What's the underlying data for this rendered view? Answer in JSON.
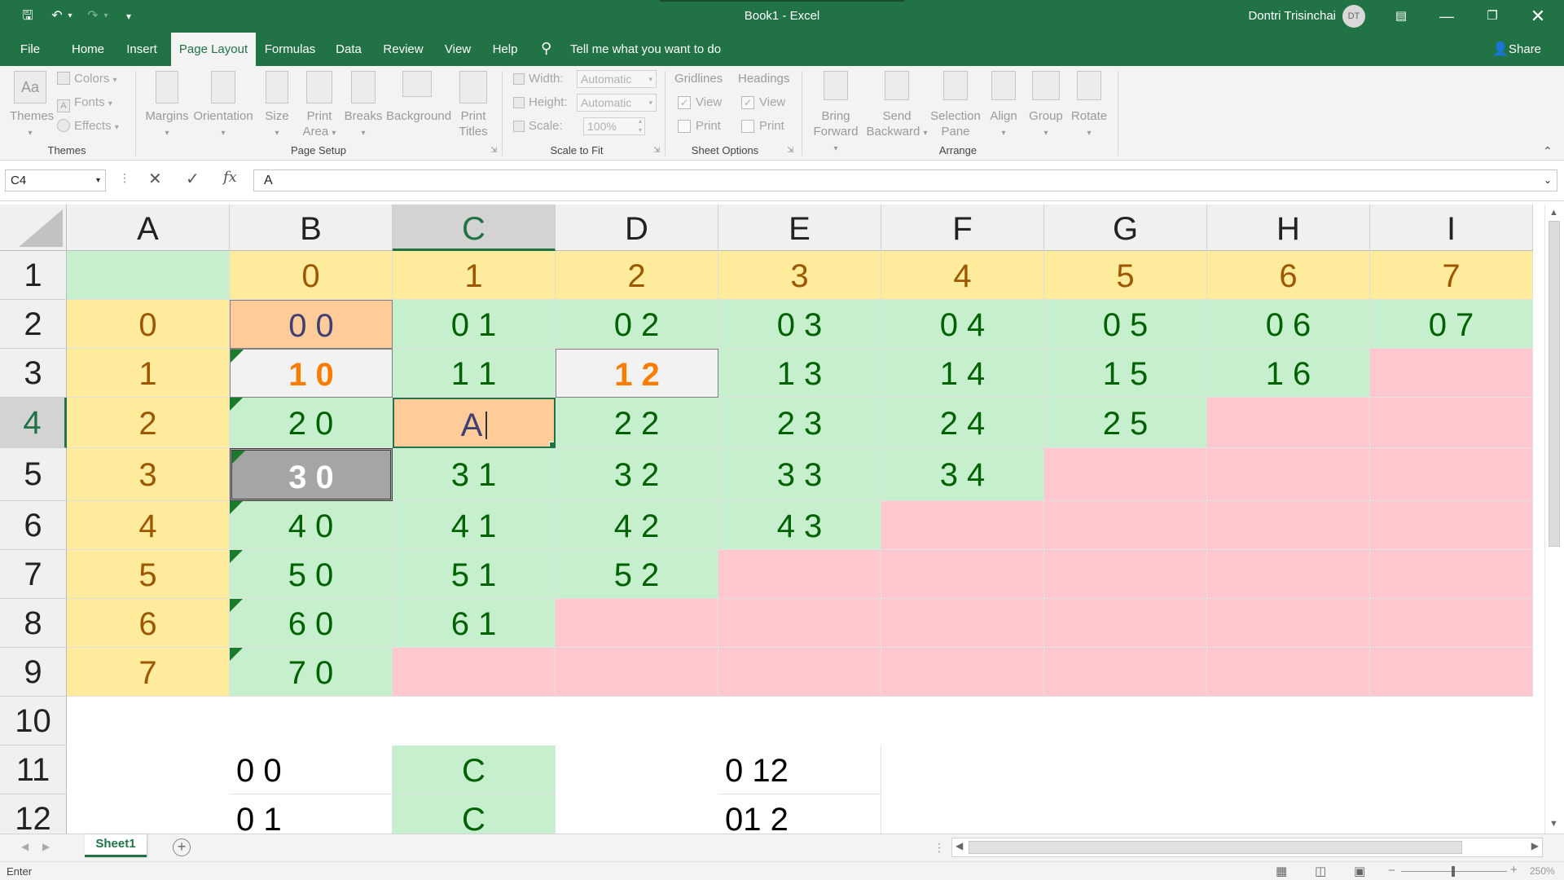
{
  "titlebar": {
    "title": "Book1  -  Excel",
    "user": "Dontri Trisinchai",
    "initials": "DT"
  },
  "tabs": [
    {
      "label": "File",
      "x": 20,
      "w": 34
    },
    {
      "label": "Home",
      "x": 80,
      "w": 56
    },
    {
      "label": "Insert",
      "x": 148,
      "w": 52
    },
    {
      "label": "Page Layout",
      "x": 210,
      "w": 104,
      "active": true
    },
    {
      "label": "Formulas",
      "x": 318,
      "w": 76
    },
    {
      "label": "Data",
      "x": 404,
      "w": 48
    },
    {
      "label": "Review",
      "x": 464,
      "w": 62
    },
    {
      "label": "View",
      "x": 538,
      "w": 48
    },
    {
      "label": "Help",
      "x": 596,
      "w": 48
    }
  ],
  "tellme": "Tell me what you want to do",
  "share": "Share",
  "ribbon": {
    "themes": {
      "themes": "Themes",
      "colors": "Colors",
      "fonts": "Fonts",
      "effects": "Effects",
      "group": "Themes"
    },
    "page_setup": {
      "margins": "Margins",
      "orientation": "Orientation",
      "size": "Size",
      "print_area_1": "Print",
      "print_area_2": "Area",
      "breaks": "Breaks",
      "background": "Background",
      "print_titles_1": "Print",
      "print_titles_2": "Titles",
      "group": "Page Setup"
    },
    "scale": {
      "width": "Width:",
      "height": "Height:",
      "scale": "Scale:",
      "width_val": "Automatic",
      "height_val": "Automatic",
      "scale_val": "100%",
      "group": "Scale to Fit"
    },
    "sheet_options": {
      "gridlines": "Gridlines",
      "headings": "Headings",
      "view": "View",
      "print": "Print",
      "group": "Sheet Options"
    },
    "arrange": {
      "bring_1": "Bring",
      "bring_2": "Forward",
      "send_1": "Send",
      "send_2": "Backward",
      "selection_1": "Selection",
      "selection_2": "Pane",
      "align": "Align",
      "group_btn": "Group",
      "rotate": "Rotate",
      "group": "Arrange"
    }
  },
  "formula_bar": {
    "name_box": "C4",
    "content": "A"
  },
  "columns": [
    {
      "label": "A",
      "x": 82,
      "w": 200
    },
    {
      "label": "B",
      "x": 282,
      "w": 200
    },
    {
      "label": "C",
      "x": 482,
      "w": 200,
      "selected": true
    },
    {
      "label": "D",
      "x": 682,
      "w": 200
    },
    {
      "label": "E",
      "x": 882,
      "w": 200
    },
    {
      "label": "F",
      "x": 1082,
      "w": 200
    },
    {
      "label": "G",
      "x": 1282,
      "w": 200
    },
    {
      "label": "H",
      "x": 1482,
      "w": 200
    },
    {
      "label": "I",
      "x": 1682,
      "w": 200
    }
  ],
  "rows": [
    {
      "label": "1",
      "y": 57,
      "h": 60
    },
    {
      "label": "2",
      "y": 117,
      "h": 60
    },
    {
      "label": "3",
      "y": 177,
      "h": 60
    },
    {
      "label": "4",
      "y": 237,
      "h": 62,
      "selected": true
    },
    {
      "label": "5",
      "y": 299,
      "h": 65
    },
    {
      "label": "6",
      "y": 364,
      "h": 60
    },
    {
      "label": "7",
      "y": 424,
      "h": 60
    },
    {
      "label": "8",
      "y": 484,
      "h": 60
    },
    {
      "label": "9",
      "y": 544,
      "h": 60
    },
    {
      "label": "10",
      "y": 604,
      "h": 60
    },
    {
      "label": "11",
      "y": 664,
      "h": 60
    },
    {
      "label": "12",
      "y": 724,
      "h": 60
    }
  ],
  "cells": [
    {
      "r": 0,
      "c": 0,
      "v": "",
      "bg": "#c6efce"
    },
    {
      "r": 0,
      "c": 1,
      "v": "0",
      "bg": "#ffeb9c",
      "fg": "#9c5700"
    },
    {
      "r": 0,
      "c": 2,
      "v": "1",
      "bg": "#ffeb9c",
      "fg": "#9c5700"
    },
    {
      "r": 0,
      "c": 3,
      "v": "2",
      "bg": "#ffeb9c",
      "fg": "#9c5700"
    },
    {
      "r": 0,
      "c": 4,
      "v": "3",
      "bg": "#ffeb9c",
      "fg": "#9c5700"
    },
    {
      "r": 0,
      "c": 5,
      "v": "4",
      "bg": "#ffeb9c",
      "fg": "#9c5700"
    },
    {
      "r": 0,
      "c": 6,
      "v": "5",
      "bg": "#ffeb9c",
      "fg": "#9c5700"
    },
    {
      "r": 0,
      "c": 7,
      "v": "6",
      "bg": "#ffeb9c",
      "fg": "#9c5700"
    },
    {
      "r": 0,
      "c": 8,
      "v": "7",
      "bg": "#ffeb9c",
      "fg": "#9c5700"
    },
    {
      "r": 1,
      "c": 0,
      "v": "0",
      "bg": "#ffeb9c",
      "fg": "#9c5700"
    },
    {
      "r": 1,
      "c": 1,
      "v": "0 0",
      "bg": "#ffcc99",
      "fg": "#3f3f76",
      "border": "#7f7f7f"
    },
    {
      "r": 1,
      "c": 2,
      "v": "0 1",
      "bg": "#c6efce",
      "fg": "#006100"
    },
    {
      "r": 1,
      "c": 3,
      "v": "0 2",
      "bg": "#c6efce",
      "fg": "#006100"
    },
    {
      "r": 1,
      "c": 4,
      "v": "0 3",
      "bg": "#c6efce",
      "fg": "#006100"
    },
    {
      "r": 1,
      "c": 5,
      "v": "0 4",
      "bg": "#c6efce",
      "fg": "#006100"
    },
    {
      "r": 1,
      "c": 6,
      "v": "0 5",
      "bg": "#c6efce",
      "fg": "#006100"
    },
    {
      "r": 1,
      "c": 7,
      "v": "0 6",
      "bg": "#c6efce",
      "fg": "#006100"
    },
    {
      "r": 1,
      "c": 8,
      "v": "0 7",
      "bg": "#c6efce",
      "fg": "#006100"
    },
    {
      "r": 2,
      "c": 0,
      "v": "1",
      "bg": "#ffeb9c",
      "fg": "#9c5700"
    },
    {
      "r": 2,
      "c": 1,
      "v": "1 0",
      "bg": "#f2f2f2",
      "fg": "#fa7d00",
      "bold": true,
      "border": "#7f7f7f",
      "err": true
    },
    {
      "r": 2,
      "c": 2,
      "v": "1 1",
      "bg": "#c6efce",
      "fg": "#006100"
    },
    {
      "r": 2,
      "c": 3,
      "v": "1 2",
      "bg": "#f2f2f2",
      "fg": "#fa7d00",
      "bold": true,
      "border": "#7f7f7f"
    },
    {
      "r": 2,
      "c": 4,
      "v": "1 3",
      "bg": "#c6efce",
      "fg": "#006100"
    },
    {
      "r": 2,
      "c": 5,
      "v": "1 4",
      "bg": "#c6efce",
      "fg": "#006100"
    },
    {
      "r": 2,
      "c": 6,
      "v": "1 5",
      "bg": "#c6efce",
      "fg": "#006100"
    },
    {
      "r": 2,
      "c": 7,
      "v": "1 6",
      "bg": "#c6efce",
      "fg": "#006100"
    },
    {
      "r": 2,
      "c": 8,
      "v": "",
      "bg": "#ffc7ce"
    },
    {
      "r": 3,
      "c": 0,
      "v": "2",
      "bg": "#ffeb9c",
      "fg": "#9c5700"
    },
    {
      "r": 3,
      "c": 1,
      "v": "2 0",
      "bg": "#c6efce",
      "fg": "#006100",
      "err": true
    },
    {
      "r": 3,
      "c": 2,
      "v": "A",
      "bg": "#ffcc99",
      "fg": "#3f3f76",
      "active": true
    },
    {
      "r": 3,
      "c": 3,
      "v": "2 2",
      "bg": "#c6efce",
      "fg": "#006100"
    },
    {
      "r": 3,
      "c": 4,
      "v": "2 3",
      "bg": "#c6efce",
      "fg": "#006100"
    },
    {
      "r": 3,
      "c": 5,
      "v": "2 4",
      "bg": "#c6efce",
      "fg": "#006100"
    },
    {
      "r": 3,
      "c": 6,
      "v": "2 5",
      "bg": "#c6efce",
      "fg": "#006100"
    },
    {
      "r": 3,
      "c": 7,
      "v": "",
      "bg": "#ffc7ce"
    },
    {
      "r": 3,
      "c": 8,
      "v": "",
      "bg": "#ffc7ce"
    },
    {
      "r": 4,
      "c": 0,
      "v": "3",
      "bg": "#ffeb9c",
      "fg": "#9c5700"
    },
    {
      "r": 4,
      "c": 1,
      "v": "3 0",
      "bg": "#a5a5a5",
      "fg": "#ffffff",
      "bold": true,
      "border": "#3f3f3f",
      "double": true,
      "err": true
    },
    {
      "r": 4,
      "c": 2,
      "v": "3 1",
      "bg": "#c6efce",
      "fg": "#006100"
    },
    {
      "r": 4,
      "c": 3,
      "v": "3 2",
      "bg": "#c6efce",
      "fg": "#006100"
    },
    {
      "r": 4,
      "c": 4,
      "v": "3 3",
      "bg": "#c6efce",
      "fg": "#006100"
    },
    {
      "r": 4,
      "c": 5,
      "v": "3 4",
      "bg": "#c6efce",
      "fg": "#006100"
    },
    {
      "r": 4,
      "c": 6,
      "v": "",
      "bg": "#ffc7ce"
    },
    {
      "r": 4,
      "c": 7,
      "v": "",
      "bg": "#ffc7ce"
    },
    {
      "r": 4,
      "c": 8,
      "v": "",
      "bg": "#ffc7ce"
    },
    {
      "r": 5,
      "c": 0,
      "v": "4",
      "bg": "#ffeb9c",
      "fg": "#9c5700"
    },
    {
      "r": 5,
      "c": 1,
      "v": "4 0",
      "bg": "#c6efce",
      "fg": "#006100",
      "err": true
    },
    {
      "r": 5,
      "c": 2,
      "v": "4 1",
      "bg": "#c6efce",
      "fg": "#006100"
    },
    {
      "r": 5,
      "c": 3,
      "v": "4 2",
      "bg": "#c6efce",
      "fg": "#006100"
    },
    {
      "r": 5,
      "c": 4,
      "v": "4 3",
      "bg": "#c6efce",
      "fg": "#006100"
    },
    {
      "r": 5,
      "c": 5,
      "v": "",
      "bg": "#ffc7ce"
    },
    {
      "r": 5,
      "c": 6,
      "v": "",
      "bg": "#ffc7ce"
    },
    {
      "r": 5,
      "c": 7,
      "v": "",
      "bg": "#ffc7ce"
    },
    {
      "r": 5,
      "c": 8,
      "v": "",
      "bg": "#ffc7ce"
    },
    {
      "r": 6,
      "c": 0,
      "v": "5",
      "bg": "#ffeb9c",
      "fg": "#9c5700"
    },
    {
      "r": 6,
      "c": 1,
      "v": "5 0",
      "bg": "#c6efce",
      "fg": "#006100",
      "err": true
    },
    {
      "r": 6,
      "c": 2,
      "v": "5 1",
      "bg": "#c6efce",
      "fg": "#006100"
    },
    {
      "r": 6,
      "c": 3,
      "v": "5 2",
      "bg": "#c6efce",
      "fg": "#006100"
    },
    {
      "r": 6,
      "c": 4,
      "v": "",
      "bg": "#ffc7ce"
    },
    {
      "r": 6,
      "c": 5,
      "v": "",
      "bg": "#ffc7ce"
    },
    {
      "r": 6,
      "c": 6,
      "v": "",
      "bg": "#ffc7ce"
    },
    {
      "r": 6,
      "c": 7,
      "v": "",
      "bg": "#ffc7ce"
    },
    {
      "r": 6,
      "c": 8,
      "v": "",
      "bg": "#ffc7ce"
    },
    {
      "r": 7,
      "c": 0,
      "v": "6",
      "bg": "#ffeb9c",
      "fg": "#9c5700"
    },
    {
      "r": 7,
      "c": 1,
      "v": "6 0",
      "bg": "#c6efce",
      "fg": "#006100",
      "err": true
    },
    {
      "r": 7,
      "c": 2,
      "v": "6 1",
      "bg": "#c6efce",
      "fg": "#006100"
    },
    {
      "r": 7,
      "c": 3,
      "v": "",
      "bg": "#ffc7ce"
    },
    {
      "r": 7,
      "c": 4,
      "v": "",
      "bg": "#ffc7ce"
    },
    {
      "r": 7,
      "c": 5,
      "v": "",
      "bg": "#ffc7ce"
    },
    {
      "r": 7,
      "c": 6,
      "v": "",
      "bg": "#ffc7ce"
    },
    {
      "r": 7,
      "c": 7,
      "v": "",
      "bg": "#ffc7ce"
    },
    {
      "r": 7,
      "c": 8,
      "v": "",
      "bg": "#ffc7ce"
    },
    {
      "r": 8,
      "c": 0,
      "v": "7",
      "bg": "#ffeb9c",
      "fg": "#9c5700"
    },
    {
      "r": 8,
      "c": 1,
      "v": "7 0",
      "bg": "#c6efce",
      "fg": "#006100",
      "err": true
    },
    {
      "r": 8,
      "c": 2,
      "v": "",
      "bg": "#ffc7ce"
    },
    {
      "r": 8,
      "c": 3,
      "v": "",
      "bg": "#ffc7ce"
    },
    {
      "r": 8,
      "c": 4,
      "v": "",
      "bg": "#ffc7ce"
    },
    {
      "r": 8,
      "c": 5,
      "v": "",
      "bg": "#ffc7ce"
    },
    {
      "r": 8,
      "c": 6,
      "v": "",
      "bg": "#ffc7ce"
    },
    {
      "r": 8,
      "c": 7,
      "v": "",
      "bg": "#ffc7ce"
    },
    {
      "r": 8,
      "c": 8,
      "v": "",
      "bg": "#ffc7ce"
    },
    {
      "r": 10,
      "c": 1,
      "v": "0 0",
      "fg": "#000000",
      "align": "left"
    },
    {
      "r": 10,
      "c": 2,
      "v": "C",
      "bg": "#c6efce",
      "fg": "#006100"
    },
    {
      "r": 10,
      "c": 4,
      "v": "0 12",
      "fg": "#000000",
      "align": "left"
    },
    {
      "r": 11,
      "c": 1,
      "v": "0 1",
      "fg": "#000000",
      "align": "left"
    },
    {
      "r": 11,
      "c": 2,
      "v": "C",
      "bg": "#c6efce",
      "fg": "#006100"
    },
    {
      "r": 11,
      "c": 4,
      "v": "01 2",
      "fg": "#000000",
      "align": "left"
    }
  ],
  "sheets": [
    {
      "label": "Sheet1",
      "active": true
    }
  ],
  "status": {
    "mode": "Enter",
    "zoom": "250%"
  }
}
